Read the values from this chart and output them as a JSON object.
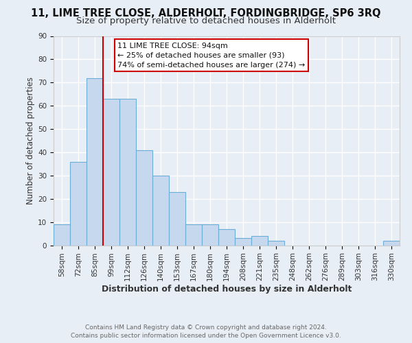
{
  "title": "11, LIME TREE CLOSE, ALDERHOLT, FORDINGBRIDGE, SP6 3RQ",
  "subtitle": "Size of property relative to detached houses in Alderholt",
  "xlabel": "Distribution of detached houses by size in Alderholt",
  "ylabel": "Number of detached properties",
  "bar_labels": [
    "58sqm",
    "72sqm",
    "85sqm",
    "99sqm",
    "112sqm",
    "126sqm",
    "140sqm",
    "153sqm",
    "167sqm",
    "180sqm",
    "194sqm",
    "208sqm",
    "221sqm",
    "235sqm",
    "248sqm",
    "262sqm",
    "276sqm",
    "289sqm",
    "303sqm",
    "316sqm",
    "330sqm"
  ],
  "bar_values": [
    9,
    36,
    72,
    63,
    63,
    41,
    30,
    23,
    9,
    9,
    7,
    3,
    4,
    2,
    0,
    0,
    0,
    0,
    0,
    0,
    2
  ],
  "bar_color": "#c5d8ee",
  "bar_edgecolor": "#6aaed6",
  "vline_x_index": 2,
  "vline_color": "#cc0000",
  "annotation_title": "11 LIME TREE CLOSE: 94sqm",
  "annotation_line1": "← 25% of detached houses are smaller (93)",
  "annotation_line2": "74% of semi-detached houses are larger (274) →",
  "annotation_box_facecolor": "#ffffff",
  "annotation_box_edgecolor": "#cc0000",
  "ylim": [
    0,
    90
  ],
  "yticks": [
    0,
    10,
    20,
    30,
    40,
    50,
    60,
    70,
    80,
    90
  ],
  "footer1": "Contains HM Land Registry data © Crown copyright and database right 2024.",
  "footer2": "Contains public sector information licensed under the Open Government Licence v3.0.",
  "background_color": "#e8eef6",
  "plot_bg_color": "#e8eef6",
  "grid_color": "#ffffff",
  "title_fontsize": 10.5,
  "subtitle_fontsize": 9.5,
  "xlabel_fontsize": 9,
  "ylabel_fontsize": 8.5,
  "tick_fontsize": 7.5,
  "annotation_fontsize": 8,
  "footer_fontsize": 6.5
}
